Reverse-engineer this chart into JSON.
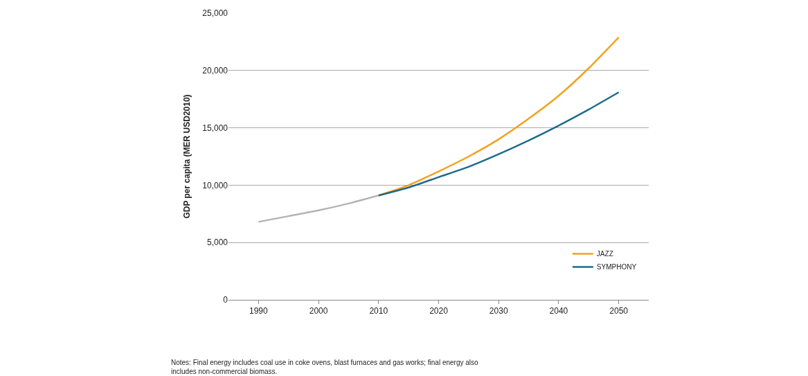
{
  "chart_data": {
    "type": "line",
    "ylabel": "GDP per capita (MER USD2010)",
    "series": [
      {
        "color": "#b4b4b4",
        "x": [
          1990,
          1995,
          2000,
          2005,
          2010
        ],
        "values": [
          6800,
          7300,
          7800,
          8400,
          9100
        ]
      },
      {
        "name": "JAZZ",
        "color": "#f4a11e",
        "x": [
          2010,
          2015,
          2020,
          2025,
          2030,
          2035,
          2040,
          2045,
          2050
        ],
        "values": [
          9100,
          10000,
          11200,
          12500,
          14000,
          15800,
          17800,
          20200,
          22900
        ]
      },
      {
        "name": "SYMPHONY",
        "color": "#1d6a8a",
        "x": [
          2010,
          2015,
          2020,
          2025,
          2030,
          2035,
          2040,
          2045,
          2050
        ],
        "values": [
          9100,
          9800,
          10700,
          11600,
          12700,
          13900,
          15200,
          16600,
          18100
        ]
      }
    ],
    "xlim": [
      1985,
      2055
    ],
    "xticks": [
      1990,
      2000,
      2010,
      2020,
      2030,
      2040,
      2050
    ],
    "ylim": [
      0,
      25000
    ],
    "yticks": [
      0,
      {
        "value": 5000,
        "label": "5,000"
      },
      {
        "value": 10000,
        "label": "10,000"
      },
      {
        "value": 15000,
        "label": "15,000"
      },
      {
        "value": 20000,
        "label": "20,000"
      },
      {
        "value": 25000,
        "label": "25,000"
      }
    ],
    "grid": "y",
    "legend": "bottom right",
    "marker": "none",
    "line_style": "solid",
    "annotations": [
      "Notes: Final energy includes coal use in coke ovens, blast furnaces and gas works; final energy also\nincludes non-commercial biomass."
    ]
  }
}
